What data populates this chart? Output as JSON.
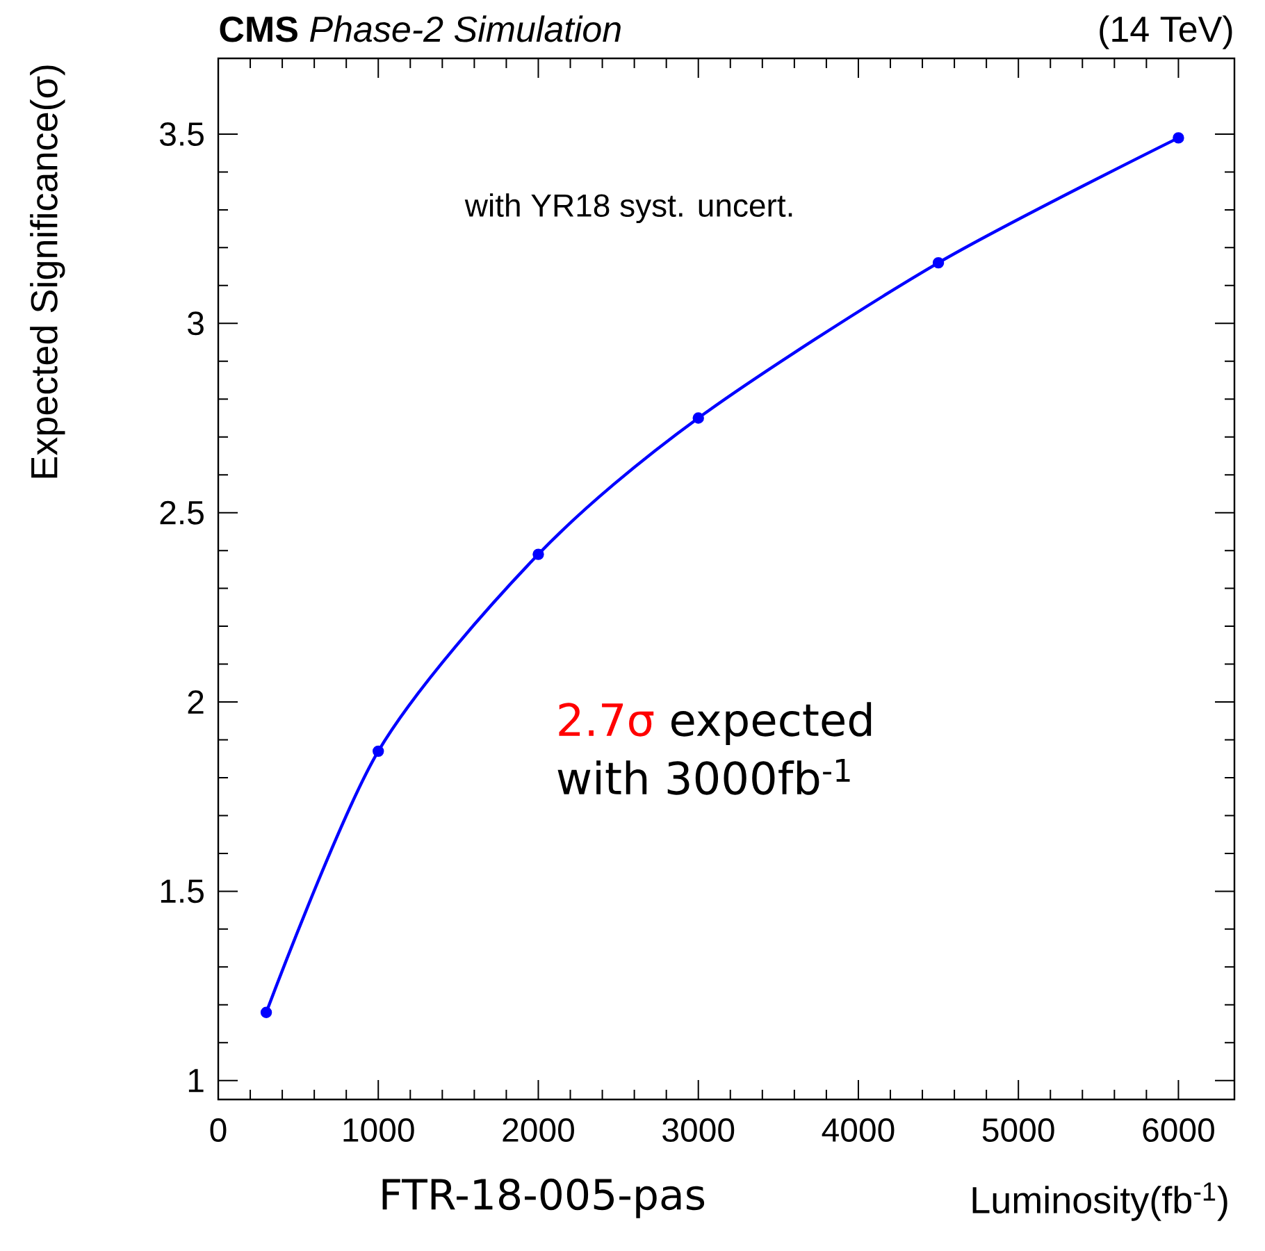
{
  "chart_data": {
    "type": "line",
    "xlabel": "Luminosity(fb$^{-1}$)",
    "ylabel": "Expected Significance(σ)",
    "x": [
      300,
      1000,
      2000,
      3000,
      4500,
      6000
    ],
    "series": [
      {
        "color": "#0000ff",
        "values": [
          1.18,
          1.87,
          2.39,
          2.75,
          3.16,
          3.49
        ]
      }
    ],
    "xlim": [
      0,
      6350
    ],
    "ylim": [
      0.95,
      3.7
    ],
    "xticks": [
      0,
      1000,
      2000,
      3000,
      4000,
      5000,
      6000
    ],
    "yticks": [
      1,
      1.5,
      2,
      2.5,
      3,
      3.5
    ],
    "marker": "circle",
    "line_style": "solid",
    "grid": false,
    "annotations": [
      "**CMS** *Phase-2 Simulation*",
      "(14 TeV)",
      "with YR18 syst. uncert.",
      "FTR-18-005-pas",
      "2.7σ",
      "expected",
      "with 3000fb$^{-1}$"
    ]
  }
}
